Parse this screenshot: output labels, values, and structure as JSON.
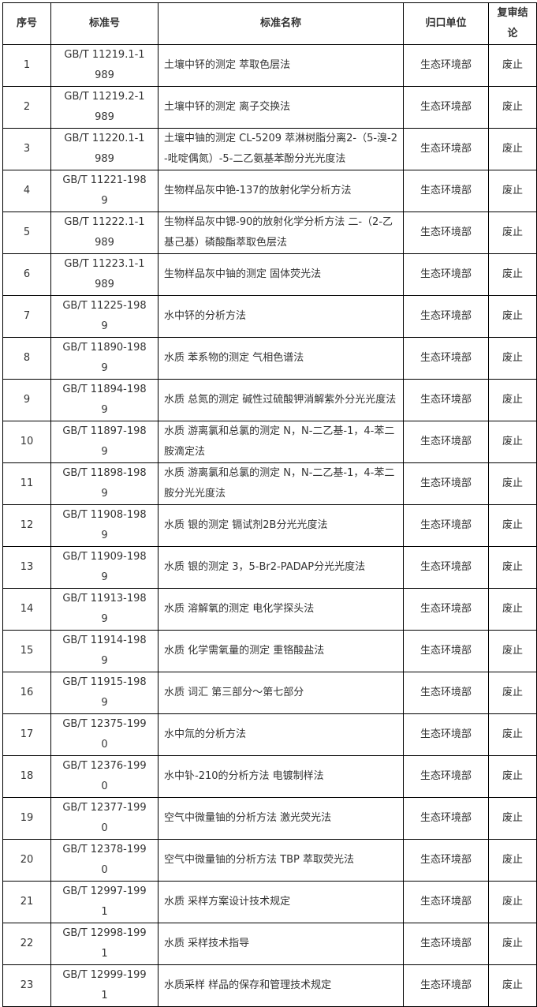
{
  "table": {
    "headers": [
      "序号",
      "标准号",
      "标准名称",
      "归口单位",
      "复审结论"
    ],
    "rows": [
      {
        "no": "1",
        "std": "GB/T 11219.1-1989",
        "name": "土壤中钚的测定 萃取色层法",
        "unit": "生态环境部",
        "conclusion": "废止"
      },
      {
        "no": "2",
        "std": "GB/T 11219.2-1989",
        "name": "土壤中钚的测定 离子交换法",
        "unit": "生态环境部",
        "conclusion": "废止"
      },
      {
        "no": "3",
        "std": "GB/T 11220.1-1989",
        "name": "土壤中铀的测定 CL-5209 萃淋树脂分离2-（5-溴-2-吡啶偶氮）-5-二乙氨基苯酚分光光度法",
        "unit": "生态环境部",
        "conclusion": "废止"
      },
      {
        "no": "4",
        "std": "GB/T 11221-1989",
        "name": "生物样品灰中铯-137的放射化学分析方法",
        "unit": "生态环境部",
        "conclusion": "废止"
      },
      {
        "no": "5",
        "std": "GB/T 11222.1-1989",
        "name": "生物样品灰中锶-90的放射化学分析方法 二-（2-乙基己基）磷酸酯萃取色层法",
        "unit": "生态环境部",
        "conclusion": "废止"
      },
      {
        "no": "6",
        "std": "GB/T 11223.1-1989",
        "name": "生物样品灰中铀的测定 固体荧光法",
        "unit": "生态环境部",
        "conclusion": "废止"
      },
      {
        "no": "7",
        "std": "GB/T 11225-1989",
        "name": "水中钚的分析方法",
        "unit": "生态环境部",
        "conclusion": "废止"
      },
      {
        "no": "8",
        "std": "GB/T 11890-1989",
        "name": "水质 苯系物的测定 气相色谱法",
        "unit": "生态环境部",
        "conclusion": "废止"
      },
      {
        "no": "9",
        "std": "GB/T 11894-1989",
        "name": "水质 总氮的测定 碱性过硫酸钾消解紫外分光光度法",
        "unit": "生态环境部",
        "conclusion": "废止"
      },
      {
        "no": "10",
        "std": "GB/T 11897-1989",
        "name": "水质 游离氯和总氯的测定 N，N-二乙基-1，4-苯二胺滴定法",
        "unit": "生态环境部",
        "conclusion": "废止"
      },
      {
        "no": "11",
        "std": "GB/T 11898-1989",
        "name": "水质 游离氯和总氯的测定 N，N-二乙基-1，4-苯二胺分光光度法",
        "unit": "生态环境部",
        "conclusion": "废止"
      },
      {
        "no": "12",
        "std": "GB/T 11908-1989",
        "name": "水质 银的测定 镉试剂2B分光光度法",
        "unit": "生态环境部",
        "conclusion": "废止"
      },
      {
        "no": "13",
        "std": "GB/T 11909-1989",
        "name": "水质 银的测定 3，5-Br2-PADAP分光光度法",
        "unit": "生态环境部",
        "conclusion": "废止"
      },
      {
        "no": "14",
        "std": "GB/T 11913-1989",
        "name": "水质 溶解氧的测定 电化学探头法",
        "unit": "生态环境部",
        "conclusion": "废止"
      },
      {
        "no": "15",
        "std": "GB/T 11914-1989",
        "name": "水质 化学需氧量的测定 重铬酸盐法",
        "unit": "生态环境部",
        "conclusion": "废止"
      },
      {
        "no": "16",
        "std": "GB/T 11915-1989",
        "name": "水质 词汇 第三部分～第七部分",
        "unit": "生态环境部",
        "conclusion": "废止"
      },
      {
        "no": "17",
        "std": "GB/T 12375-1990",
        "name": "水中氚的分析方法",
        "unit": "生态环境部",
        "conclusion": "废止"
      },
      {
        "no": "18",
        "std": "GB/T 12376-1990",
        "name": "水中钋-210的分析方法 电镀制样法",
        "unit": "生态环境部",
        "conclusion": "废止"
      },
      {
        "no": "19",
        "std": "GB/T 12377-1990",
        "name": "空气中微量铀的分析方法 激光荧光法",
        "unit": "生态环境部",
        "conclusion": "废止"
      },
      {
        "no": "20",
        "std": "GB/T 12378-1990",
        "name": "空气中微量铀的分析方法 TBP 萃取荧光法",
        "unit": "生态环境部",
        "conclusion": "废止"
      },
      {
        "no": "21",
        "std": "GB/T 12997-1991",
        "name": "水质 采样方案设计技术规定",
        "unit": "生态环境部",
        "conclusion": "废止"
      },
      {
        "no": "22",
        "std": "GB/T 12998-1991",
        "name": "水质 采样技术指导",
        "unit": "生态环境部",
        "conclusion": "废止"
      },
      {
        "no": "23",
        "std": "GB/T 12999-1991",
        "name": "水质采样 样品的保存和管理技术规定",
        "unit": "生态环境部",
        "conclusion": "废止"
      }
    ]
  }
}
